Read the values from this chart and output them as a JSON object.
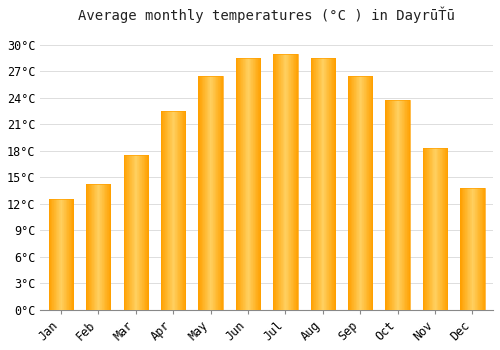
{
  "title": "Average monthly temperatures (°C ) in DayrūŤū",
  "months": [
    "Jan",
    "Feb",
    "Mar",
    "Apr",
    "May",
    "Jun",
    "Jul",
    "Aug",
    "Sep",
    "Oct",
    "Nov",
    "Dec"
  ],
  "values": [
    12.5,
    14.2,
    17.5,
    22.5,
    26.5,
    28.5,
    29.0,
    28.5,
    26.5,
    23.8,
    18.3,
    13.8
  ],
  "bar_color_light": "#FFD060",
  "bar_color_dark": "#FFA000",
  "background_color": "#FFFFFF",
  "grid_color": "#DDDDDD",
  "y_ticks": [
    0,
    3,
    6,
    9,
    12,
    15,
    18,
    21,
    24,
    27,
    30
  ],
  "ylim": [
    0,
    31.5
  ],
  "title_fontsize": 10,
  "tick_fontsize": 8.5
}
